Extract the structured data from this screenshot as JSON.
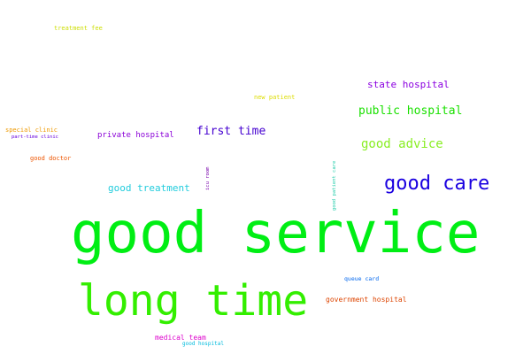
{
  "words": [
    {
      "text": "good service",
      "color": "#00ee14"
    },
    {
      "text": "long time",
      "color": "#33ee00"
    },
    {
      "text": "good care",
      "color": "#1a00e0"
    },
    {
      "text": "public hospital",
      "color": "#1ae000"
    },
    {
      "text": "good advice",
      "color": "#88ee22"
    },
    {
      "text": "state hospital",
      "color": "#8b00e0"
    },
    {
      "text": "first time",
      "color": "#4400d0"
    },
    {
      "text": "private hospital",
      "color": "#8a00d8"
    },
    {
      "text": "good treatment",
      "color": "#22ccdd"
    },
    {
      "text": "new patient",
      "color": "#dddd00"
    },
    {
      "text": "treatment fee",
      "color": "#ccdd00"
    },
    {
      "text": "special clinic",
      "color": "#ee9900"
    },
    {
      "text": "part-time clinic",
      "color": "#6600dd"
    },
    {
      "text": "good doctor",
      "color": "#ee5500"
    },
    {
      "text": "icu room",
      "color": "#7700aa"
    },
    {
      "text": "good patient care",
      "color": "#22ccaa"
    },
    {
      "text": "queue card",
      "color": "#0066ee"
    },
    {
      "text": "government hospital",
      "color": "#dd4400"
    },
    {
      "text": "medical team",
      "color": "#dd00cc"
    },
    {
      "text": "good hospital",
      "color": "#00bbdd"
    }
  ]
}
